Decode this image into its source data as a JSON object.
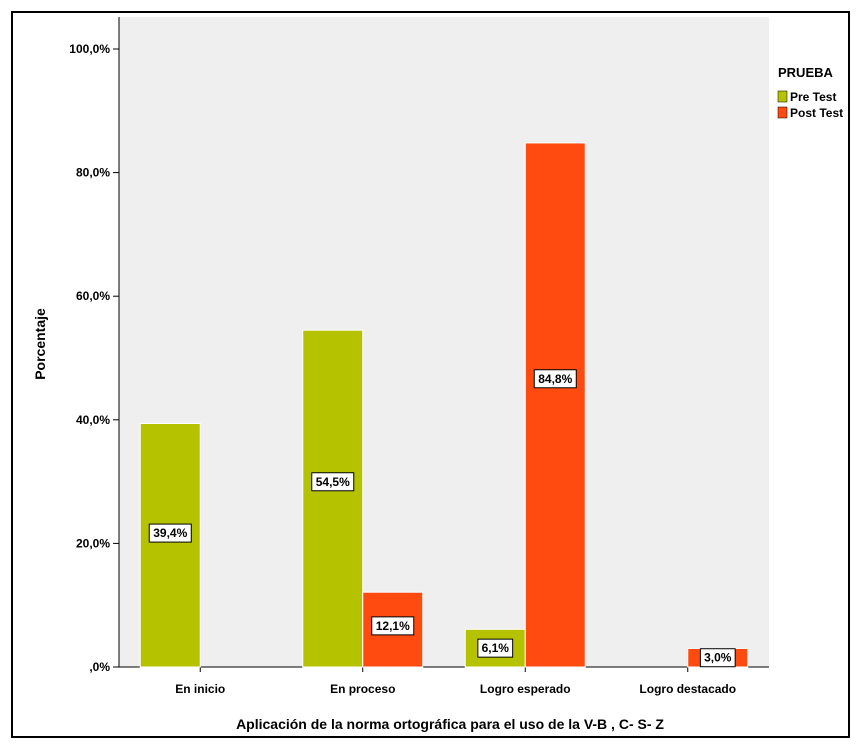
{
  "chart_data": {
    "type": "bar",
    "xlabel": "Aplicación de la norma ortográfica para el uso de la V-B , C- S- Z",
    "ylabel": "Porcentaje",
    "ylim": [
      0,
      100
    ],
    "yticks": [
      0,
      20,
      40,
      60,
      80,
      100
    ],
    "ytick_labels": [
      ",0%",
      "20,0%",
      "40,0%",
      "60,0%",
      "80,0%",
      "100,0%"
    ],
    "categories": [
      "En inicio",
      "En proceso",
      "Logro esperado",
      "Logro destacado"
    ],
    "legend": {
      "title": "PRUEBA",
      "position": "right"
    },
    "series": [
      {
        "name": "Pre Test",
        "color": "#b5c200",
        "values": [
          39.4,
          54.5,
          6.1,
          0
        ],
        "labels": [
          "39,4%",
          "54,5%",
          "6,1%",
          ""
        ]
      },
      {
        "name": "Post Test",
        "color": "#ff4a10",
        "values": [
          0,
          12.1,
          84.8,
          3.0
        ],
        "labels": [
          "",
          "12,1%",
          "84,8%",
          "3,0%"
        ]
      }
    ]
  }
}
